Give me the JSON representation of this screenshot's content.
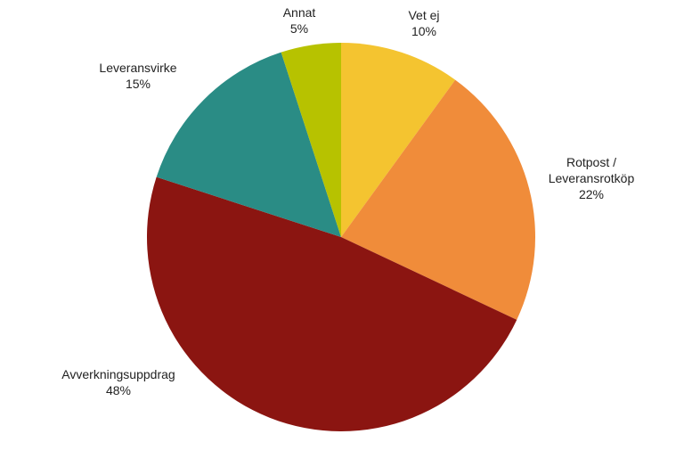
{
  "chart_data": {
    "type": "pie",
    "categories": [
      "Vet ej",
      "Rotpost / Leveransrotköp",
      "Avverkningsuppdrag",
      "Leveransvirke",
      "Annat"
    ],
    "values": [
      10,
      22,
      48,
      15,
      5
    ],
    "value_labels": [
      "10%",
      "22%",
      "48%",
      "15%",
      "5%"
    ],
    "colors": [
      "#f4c430",
      "#f08c3a",
      "#8b1511",
      "#2a8c85",
      "#b7c200"
    ]
  }
}
